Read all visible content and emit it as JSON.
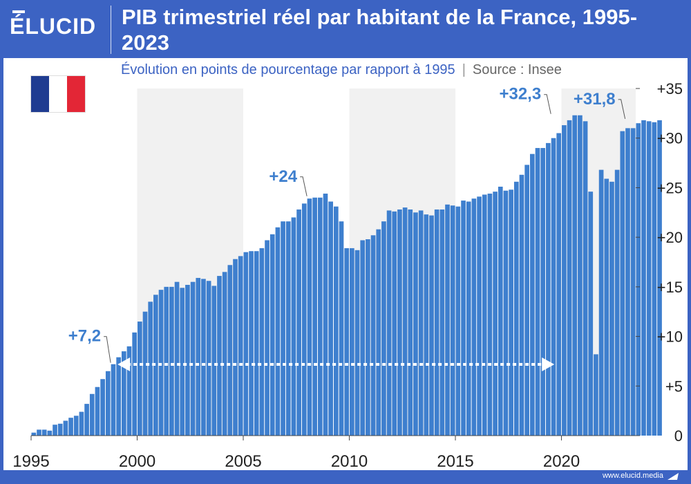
{
  "brand": {
    "logo": "ÉLUCID",
    "footer": "www.elucid.media"
  },
  "title": "PIB trimestriel réel par habitant de la France, 1995-2023",
  "subtitle": "Évolution en points de pourcentage par rapport à 1995",
  "source": "Source : Insee",
  "colors": {
    "bar": "#3e7fce",
    "accent": "#3c63c3",
    "label": "#3e7fce",
    "band": "#f1f1f1"
  },
  "flag_icon": "france-flag-icon",
  "chart_data": {
    "type": "bar",
    "title": "PIB trimestriel réel par habitant de la France, 1995-2023",
    "xlabel": "",
    "ylabel": "",
    "x_ticks": [
      "1995",
      "2000",
      "2005",
      "2010",
      "2015",
      "2020"
    ],
    "y_ticks": [
      "0",
      "+5",
      "+10",
      "+15",
      "+20",
      "+25",
      "+30",
      "+35"
    ],
    "ylim": [
      0,
      35
    ],
    "xlim": [
      1995,
      2023.5
    ],
    "y_axis_position": "right",
    "grid": false,
    "shaded_periods": [
      [
        2000,
        2005
      ],
      [
        2010,
        2015
      ],
      [
        2020,
        2023.5
      ]
    ],
    "quarters_start": "1995-Q1",
    "values": [
      0.3,
      0.6,
      0.6,
      0.5,
      1.1,
      1.2,
      1.5,
      1.8,
      2.0,
      2.4,
      3.2,
      4.2,
      4.9,
      5.7,
      6.5,
      7.2,
      7.9,
      8.5,
      9.0,
      10.4,
      11.5,
      12.5,
      13.5,
      14.2,
      14.7,
      15.0,
      15.0,
      15.5,
      14.9,
      15.2,
      15.5,
      15.9,
      15.8,
      15.6,
      15.1,
      16.1,
      16.5,
      17.2,
      17.8,
      18.1,
      18.5,
      18.6,
      18.6,
      18.9,
      19.7,
      20.3,
      21.0,
      21.6,
      21.6,
      22.0,
      22.8,
      23.4,
      23.9,
      24.0,
      24.0,
      24.4,
      23.6,
      23.1,
      21.6,
      18.9,
      18.9,
      18.7,
      19.7,
      19.8,
      20.2,
      20.8,
      21.6,
      22.7,
      22.6,
      22.8,
      23.0,
      22.8,
      22.5,
      22.7,
      22.3,
      22.2,
      22.8,
      22.8,
      23.3,
      23.2,
      23.1,
      23.7,
      23.6,
      23.9,
      24.1,
      24.3,
      24.4,
      24.6,
      25.1,
      24.7,
      24.8,
      25.6,
      26.3,
      27.3,
      28.4,
      29.0,
      29.0,
      29.5,
      30.0,
      30.5,
      31.3,
      31.8,
      32.3,
      32.3,
      31.7,
      24.6,
      8.2,
      26.8,
      25.9,
      25.6,
      26.8,
      30.7,
      31.0,
      31.0,
      31.5,
      31.8,
      31.7,
      31.6,
      31.8
    ],
    "annotations": [
      {
        "label": "+7,2",
        "x": 1998.75,
        "y": 7.2
      },
      {
        "label": "+24",
        "x": 2008.0,
        "y": 24.0
      },
      {
        "label": "+32,3",
        "x": 2019.5,
        "y": 32.3
      },
      {
        "label": "+31,8",
        "x": 2023.0,
        "y": 31.8
      }
    ],
    "arrow": {
      "from_x": 1998.75,
      "to_x": 2020.25,
      "y": 7.2,
      "style": "dotted-double-headed"
    }
  }
}
